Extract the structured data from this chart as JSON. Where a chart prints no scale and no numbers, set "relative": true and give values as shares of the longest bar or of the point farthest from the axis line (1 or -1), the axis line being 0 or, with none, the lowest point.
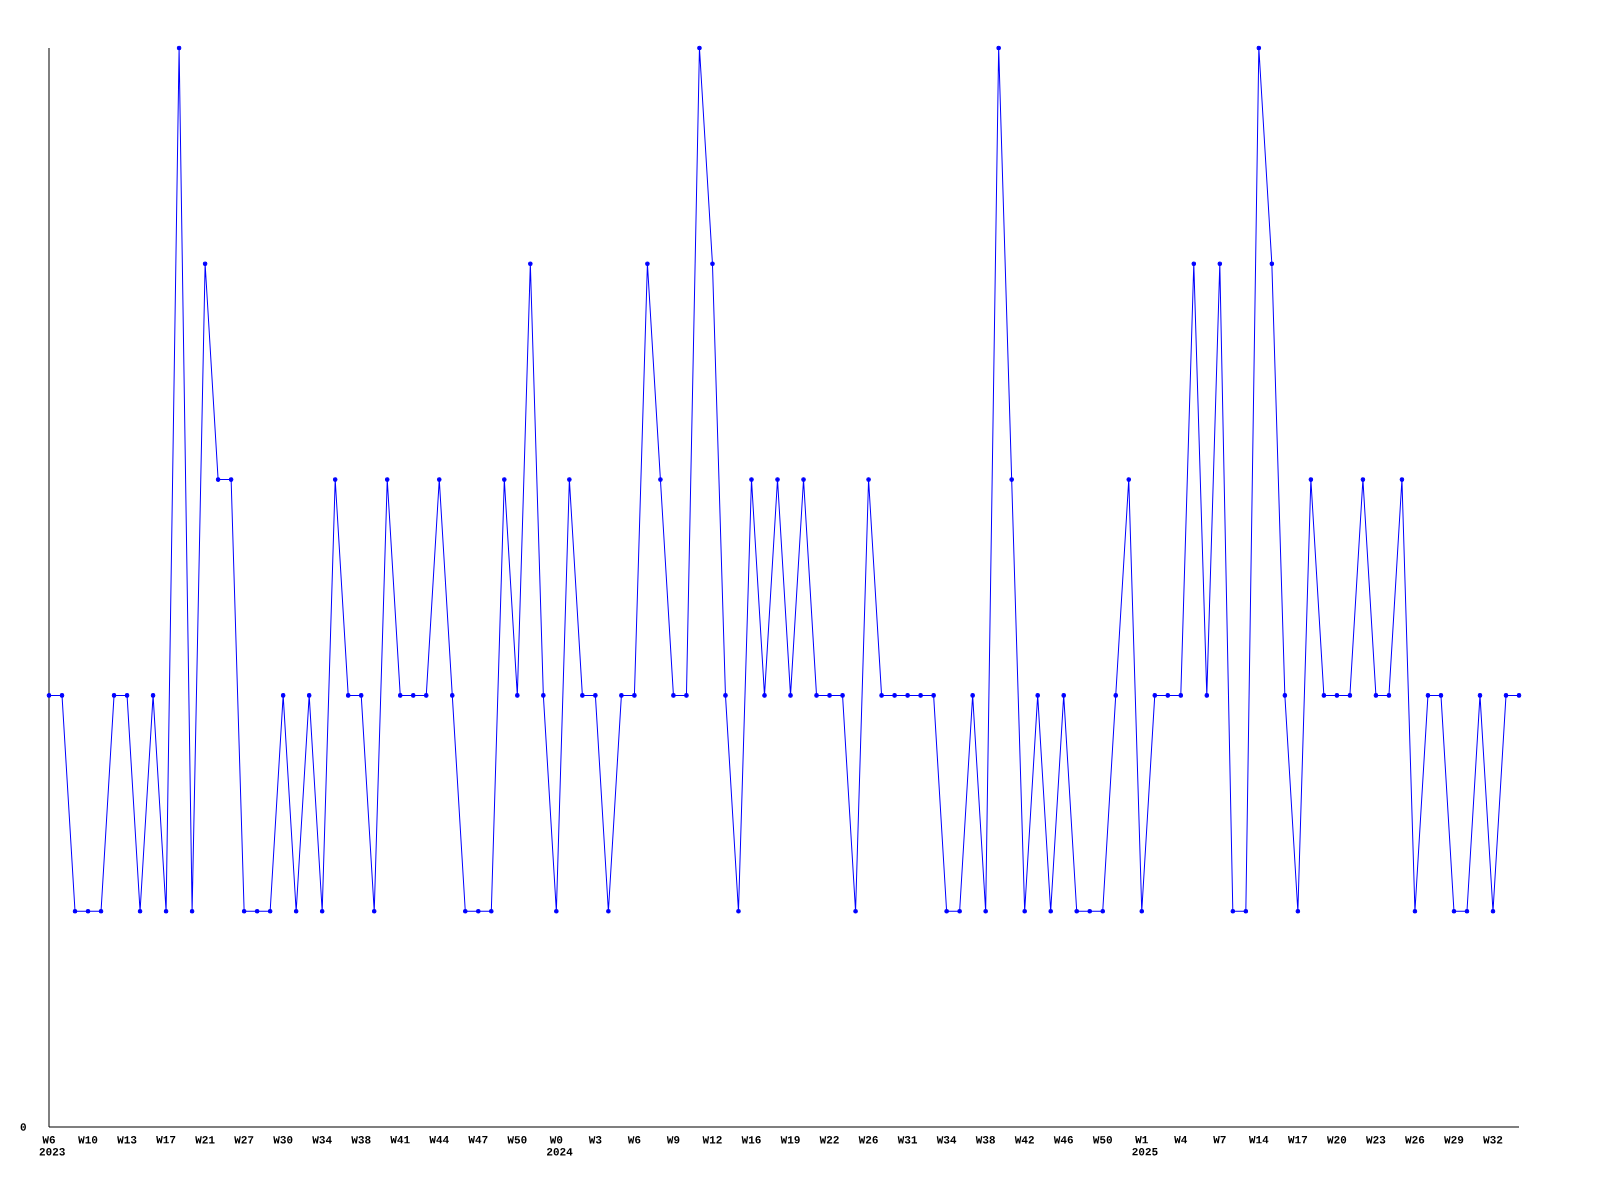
{
  "chart_data": {
    "type": "line",
    "relative": true,
    "color": "#0000ff",
    "marker": "circle",
    "line_style": "solid",
    "grid": false,
    "categories": [
      "W6 2023",
      null,
      null,
      "W10",
      null,
      null,
      "W13",
      null,
      null,
      "W17",
      null,
      null,
      "W21",
      null,
      null,
      "W27",
      null,
      null,
      "W30",
      null,
      null,
      "W34",
      null,
      null,
      "W38",
      null,
      null,
      "W41",
      null,
      null,
      "W44",
      null,
      null,
      "W47",
      null,
      null,
      "W50",
      null,
      null,
      "W0 2024",
      null,
      null,
      "W3",
      null,
      null,
      "W6",
      null,
      null,
      "W9",
      null,
      null,
      "W12",
      null,
      null,
      "W16",
      null,
      null,
      "W19",
      null,
      null,
      "W22",
      null,
      null,
      "W26",
      null,
      null,
      "W31",
      null,
      null,
      "W34",
      null,
      null,
      "W38",
      null,
      null,
      "W42",
      null,
      null,
      "W46",
      null,
      null,
      "W50",
      null,
      null,
      "W1 2025",
      null,
      null,
      "W4",
      null,
      null,
      "W7",
      null,
      null,
      "W14",
      null,
      null,
      "W17",
      null,
      null,
      "W20",
      null,
      null,
      "W23",
      null,
      null,
      "W26",
      null,
      null,
      "W29",
      null,
      null,
      "W32",
      null,
      null
    ],
    "values": [
      0.4,
      0.4,
      0.2,
      0.2,
      0.2,
      0.4,
      0.4,
      0.2,
      0.4,
      0.2,
      1.0,
      0.2,
      0.8,
      0.6,
      0.6,
      0.2,
      0.2,
      0.2,
      0.4,
      0.2,
      0.4,
      0.2,
      0.6,
      0.4,
      0.4,
      0.2,
      0.6,
      0.4,
      0.4,
      0.4,
      0.6,
      0.4,
      0.2,
      0.2,
      0.2,
      0.6,
      0.4,
      0.8,
      0.4,
      0.2,
      0.6,
      0.4,
      0.4,
      0.2,
      0.4,
      0.4,
      0.8,
      0.6,
      0.4,
      0.4,
      1.0,
      0.8,
      0.4,
      0.2,
      0.6,
      0.4,
      0.6,
      0.4,
      0.6,
      0.4,
      0.4,
      0.4,
      0.2,
      0.6,
      0.4,
      0.4,
      0.4,
      0.4,
      0.4,
      0.2,
      0.2,
      0.4,
      0.2,
      1.0,
      0.6,
      0.2,
      0.4,
      0.2,
      0.4,
      0.2,
      0.2,
      0.2,
      0.4,
      0.6,
      0.2,
      0.4,
      0.4,
      0.4,
      0.8,
      0.4,
      0.8,
      0.2,
      0.2,
      1.0,
      0.8,
      0.4,
      0.2,
      0.6,
      0.4,
      0.4,
      0.4,
      0.6,
      0.4,
      0.4,
      0.6,
      0.2,
      0.4,
      0.4,
      0.2,
      0.2,
      0.4,
      0.2,
      0.4,
      0.4
    ],
    "annotations": [
      "0"
    ]
  }
}
